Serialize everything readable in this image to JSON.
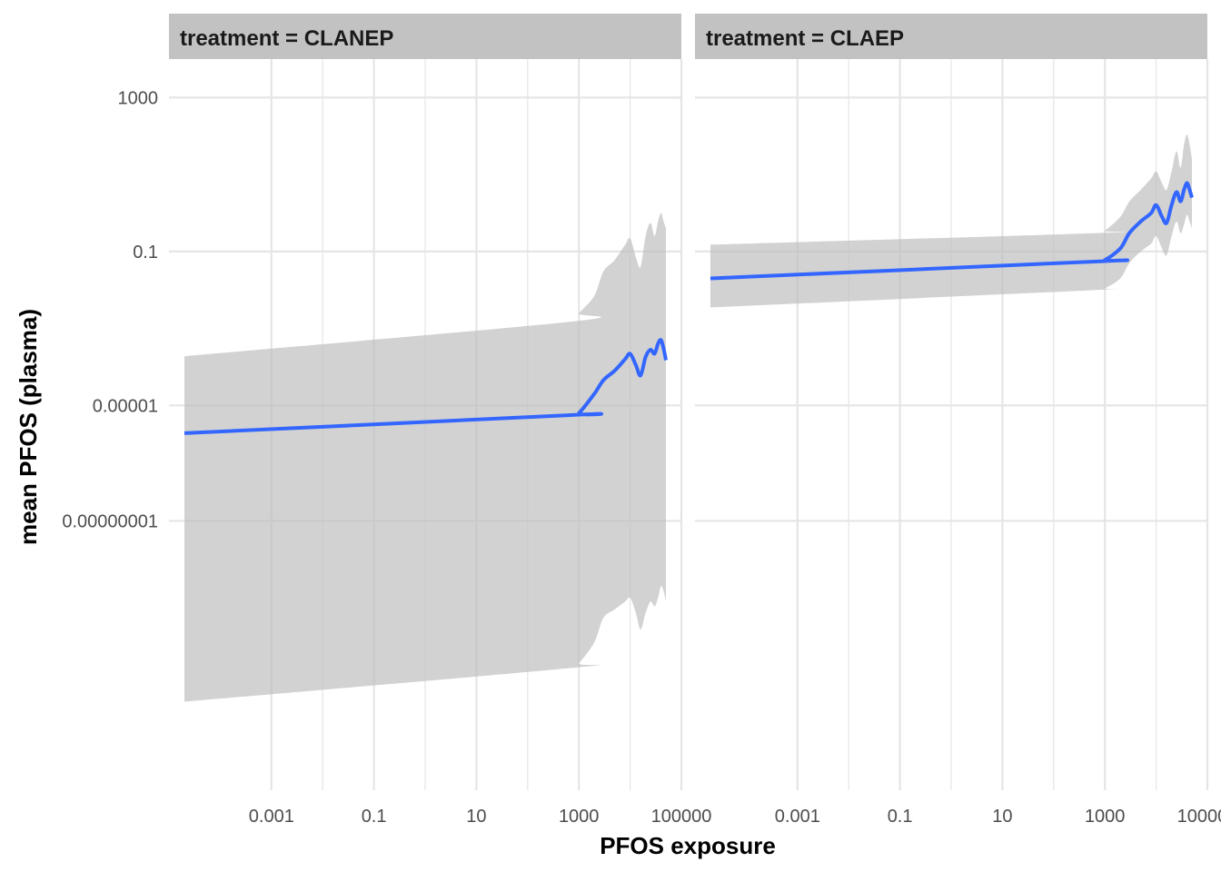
{
  "chart_data": {
    "type": "line",
    "facet_variable": "treatment",
    "x_scale": "log10",
    "y_scale": "log10",
    "xlabel": "PFOS exposure",
    "ylabel": "mean PFOS (plasma)",
    "xlim": [
      1e-05,
      100000
    ],
    "ylim": [
      1e-15,
      10000
    ],
    "x_tick_values": [
      0.001,
      0.1,
      10,
      1000,
      100000
    ],
    "x_tick_labels": [
      "0.001",
      "0.1",
      "10",
      "1000",
      "100000"
    ],
    "y_tick_values": [
      1000,
      0.1,
      1e-05,
      1e-08
    ],
    "y_tick_labels": [
      "1000",
      "0.1",
      "0.00001",
      "0.00000001"
    ],
    "grid": true,
    "colors": {
      "line": "#3366ff",
      "ribbon": "#bfbfbf",
      "grid": "#e5e5e5",
      "strip": "#c2c2c2"
    },
    "panels": [
      {
        "strip_label": "treatment = CLANEP",
        "x": [
          2e-05,
          700,
          1000,
          2000,
          3000,
          5000,
          8000,
          10000,
          13000,
          16000,
          20000,
          25000,
          30000,
          35000,
          40000,
          45000,
          50000
        ],
        "y": [
          1.9e-06,
          5.6e-06,
          6.3e-06,
          2e-05,
          4.5e-05,
          8e-05,
          0.00016,
          0.00022,
          0.00011,
          6e-05,
          0.00018,
          0.00028,
          0.00022,
          0.0004,
          0.0005,
          0.0003,
          0.00015
        ],
        "ymin": [
          2e-13,
          1.5e-12,
          2e-12,
          7e-12,
          3e-11,
          5e-11,
          8e-11,
          1e-10,
          4e-11,
          1.5e-11,
          4e-11,
          8e-11,
          6e-11,
          1e-10,
          2e-10,
          1.5e-10,
          8e-11
        ],
        "ymax": [
          0.00019,
          0.0015,
          0.0025,
          0.007,
          0.03,
          0.06,
          0.15,
          0.22,
          0.07,
          0.04,
          0.25,
          0.55,
          0.25,
          0.6,
          1.0,
          0.6,
          0.4
        ]
      },
      {
        "strip_label": "treatment = CLAEP",
        "x": [
          2e-05,
          700,
          1000,
          2000,
          3000,
          5000,
          8000,
          10000,
          13000,
          16000,
          20000,
          25000,
          30000,
          35000,
          40000,
          45000,
          50000
        ],
        "y": [
          0.02,
          0.055,
          0.06,
          0.12,
          0.3,
          0.6,
          1.0,
          1.6,
          0.8,
          0.55,
          1.6,
          3.5,
          2.0,
          4.0,
          6.0,
          4.0,
          2.5
        ],
        "ymin": [
          0.0035,
          0.01,
          0.011,
          0.02,
          0.05,
          0.1,
          0.16,
          0.25,
          0.12,
          0.08,
          0.25,
          0.6,
          0.3,
          0.5,
          0.9,
          0.6,
          0.4
        ],
        "ymax": [
          0.15,
          0.3,
          0.35,
          0.8,
          2.0,
          4.0,
          8.0,
          12.0,
          6.0,
          4.0,
          12.0,
          40.0,
          15.0,
          60.0,
          110.0,
          60.0,
          25.0
        ]
      }
    ]
  }
}
